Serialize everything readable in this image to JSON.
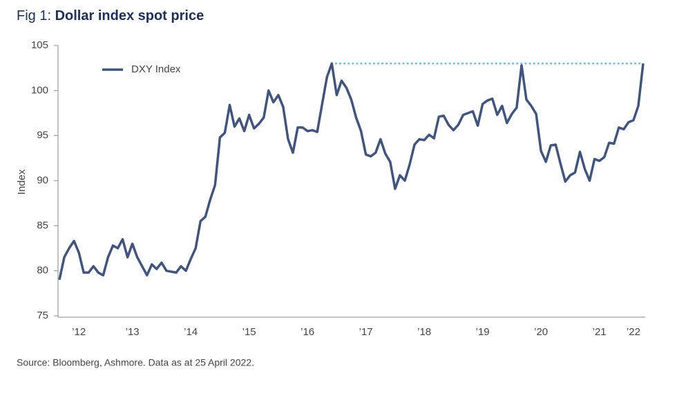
{
  "chart_data": {
    "type": "line",
    "title_prefix": "Fig 1:",
    "title": "Dollar index spot price",
    "ylabel": "Index",
    "source": "Source: Bloomberg, Ashmore. Data as at 25 April 2022.",
    "legend": "upper left",
    "ylim": [
      75,
      105
    ],
    "yticks": [
      75,
      80,
      85,
      90,
      95,
      100,
      105
    ],
    "categories": [
      null,
      null,
      null,
      null,
      "’12",
      null,
      null,
      null,
      null,
      null,
      null,
      null,
      null,
      null,
      null,
      "’13",
      null,
      null,
      null,
      null,
      null,
      null,
      null,
      null,
      null,
      null,
      null,
      "’14",
      null,
      null,
      null,
      null,
      null,
      null,
      null,
      null,
      null,
      null,
      null,
      "’15",
      null,
      null,
      null,
      null,
      null,
      null,
      null,
      null,
      null,
      null,
      null,
      "’16",
      null,
      null,
      null,
      null,
      null,
      null,
      null,
      null,
      null,
      null,
      null,
      "’17",
      null,
      null,
      null,
      null,
      null,
      null,
      null,
      null,
      null,
      null,
      null,
      "’18",
      null,
      null,
      null,
      null,
      null,
      null,
      null,
      null,
      null,
      null,
      null,
      "’19",
      null,
      null,
      null,
      null,
      null,
      null,
      null,
      null,
      null,
      null,
      null,
      "’20",
      null,
      null,
      null,
      null,
      null,
      null,
      null,
      null,
      null,
      null,
      null,
      "’21",
      null,
      null,
      null,
      null,
      null,
      null,
      "’22",
      null,
      null
    ],
    "series": [
      {
        "name": "DXY Index",
        "color": "#3f5580",
        "values": [
          79.0,
          81.5,
          82.5,
          83.3,
          82.0,
          79.8,
          79.8,
          80.5,
          79.8,
          79.5,
          81.5,
          82.8,
          82.5,
          83.5,
          81.5,
          83.0,
          81.5,
          80.5,
          79.5,
          80.7,
          80.2,
          80.9,
          80.0,
          79.9,
          79.8,
          80.5,
          80.0,
          81.3,
          82.5,
          85.5,
          86.0,
          87.9,
          89.5,
          94.8,
          95.3,
          98.4,
          96.0,
          96.9,
          95.5,
          97.3,
          95.8,
          96.3,
          97.0,
          100.0,
          98.7,
          99.5,
          98.2,
          94.6,
          93.1,
          95.9,
          95.9,
          95.5,
          95.6,
          95.4,
          98.5,
          101.5,
          103.0,
          99.5,
          101.1,
          100.3,
          99.0,
          97.0,
          95.5,
          92.9,
          92.7,
          93.1,
          94.6,
          93.0,
          92.1,
          89.1,
          90.6,
          90.0,
          91.8,
          94.0,
          94.6,
          94.5,
          95.1,
          94.7,
          97.1,
          97.2,
          96.2,
          95.6,
          96.2,
          97.3,
          97.5,
          97.7,
          96.1,
          98.5,
          98.9,
          99.1,
          97.3,
          98.3,
          96.4,
          97.4,
          98.1,
          102.8,
          99.0,
          98.3,
          97.4,
          93.3,
          92.1,
          93.9,
          94.0,
          91.9,
          89.9,
          90.6,
          90.9,
          93.2,
          91.3,
          90.0,
          92.4,
          92.2,
          92.6,
          94.2,
          94.1,
          95.9,
          95.7,
          96.5,
          96.7,
          98.3,
          103.0
        ]
      }
    ],
    "hline": {
      "value": 103.0,
      "color": "#5bc8e0"
    }
  }
}
